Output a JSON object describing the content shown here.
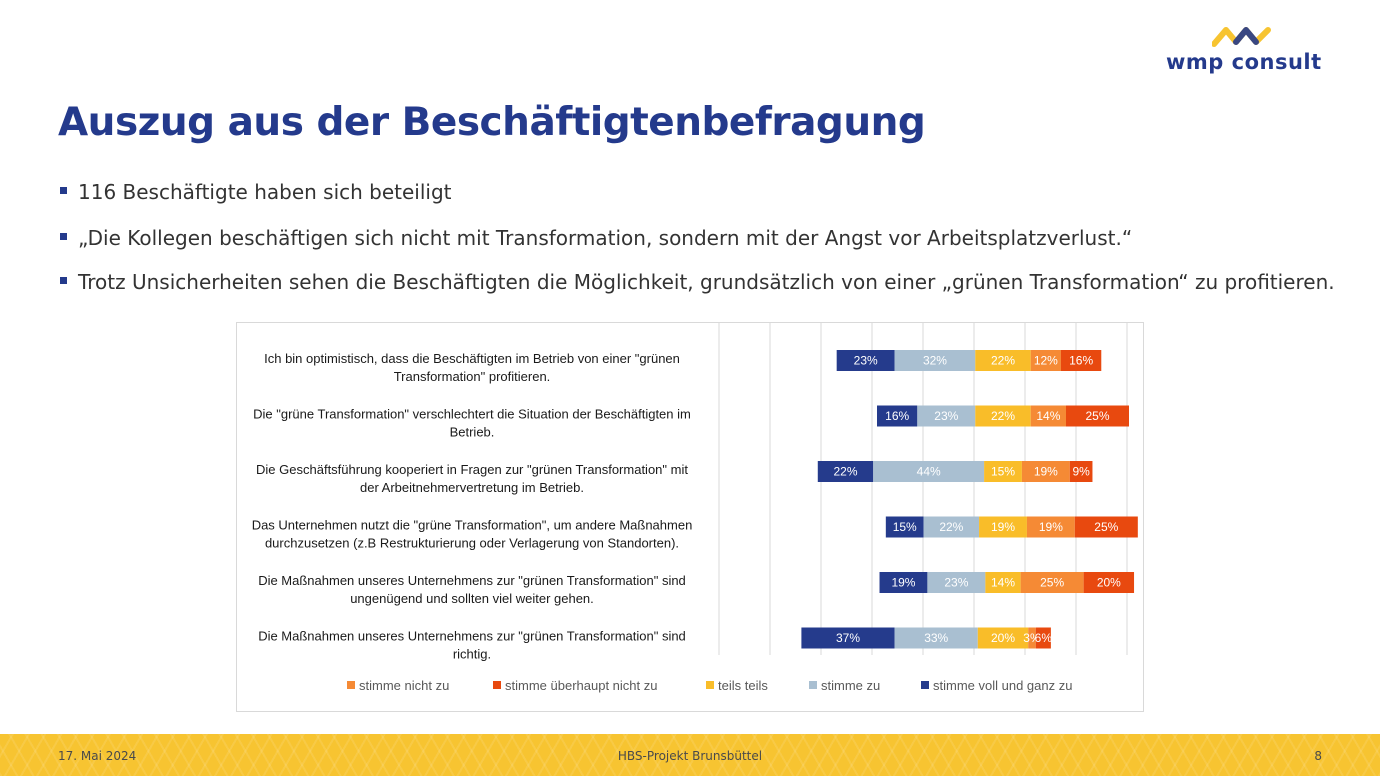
{
  "brand": {
    "name": "wmp consult",
    "colors": {
      "blue": "#243a8c",
      "yellow": "#f7c431"
    }
  },
  "title": "Auszug aus der Beschäftigtenbefragung",
  "bullets": [
    "116 Beschäftigte haben sich beteiligt",
    "„Die Kollegen beschäftigen sich nicht mit Transformation, sondern mit der Angst vor Arbeitsplatzverlust.“",
    "Trotz Unsicherheiten sehen die Beschäftigten die Möglichkeit, grundsätzlich von einer „grünen Transformation“ zu profitieren."
  ],
  "chart_data": {
    "type": "bar",
    "orientation": "horizontal-diverging-stacked",
    "categories": [
      [
        "Ich bin optimistisch, dass die Beschäftigten im Betrieb von einer \"grünen",
        "Transformation\" profitieren."
      ],
      [
        "Die \"grüne Transformation\" verschlechtert die Situation der Beschäftigten im",
        "Betrieb."
      ],
      [
        "Die Geschäftsführung kooperiert in Fragen zur \"grünen Transformation\" mit",
        "der Arbeitnehmervertretung im Betrieb."
      ],
      [
        "Das Unternehmen nutzt die \"grüne Transformation\", um andere Maßnahmen",
        "durchzusetzen (z.B Restrukturierung oder Verlagerung von Standorten)."
      ],
      [
        "Die Maßnahmen unseres Unternehmens zur \"grünen Transformation\" sind",
        "ungenügend und sollten viel weiter gehen."
      ],
      [
        "Die Maßnahmen unseres Unternehmens zur \"grünen Transformation\" sind",
        "richtig."
      ]
    ],
    "stack_order": [
      "stimme voll und ganz zu",
      "stimme zu",
      "teils teils",
      "stimme nicht zu",
      "stimme überhaupt nicht zu"
    ],
    "series": [
      {
        "name": "stimme nicht zu",
        "color": "#f58a35",
        "values": [
          12,
          14,
          19,
          19,
          25,
          3
        ]
      },
      {
        "name": "stimme überhaupt nicht zu",
        "color": "#e8490f",
        "values": [
          16,
          25,
          9,
          25,
          20,
          6
        ]
      },
      {
        "name": "teils teils",
        "color": "#f9bd29",
        "values": [
          22,
          22,
          15,
          19,
          14,
          20
        ]
      },
      {
        "name": "stimme zu",
        "color": "#a9bfd1",
        "values": [
          32,
          23,
          44,
          22,
          23,
          33
        ]
      },
      {
        "name": "stimme voll und ganz zu",
        "color": "#253b8c",
        "values": [
          23,
          16,
          22,
          15,
          19,
          37
        ]
      }
    ],
    "legend_order": [
      "stimme nicht zu",
      "stimme überhaupt nicht zu",
      "teils teils",
      "stimme zu",
      "stimme voll und ganz zu"
    ],
    "value_suffix": "%",
    "grid": true,
    "legend_position": "bottom"
  },
  "footer": {
    "date": "17. Mai 2024",
    "project": "HBS-Projekt Brunsbüttel",
    "page": "8"
  }
}
